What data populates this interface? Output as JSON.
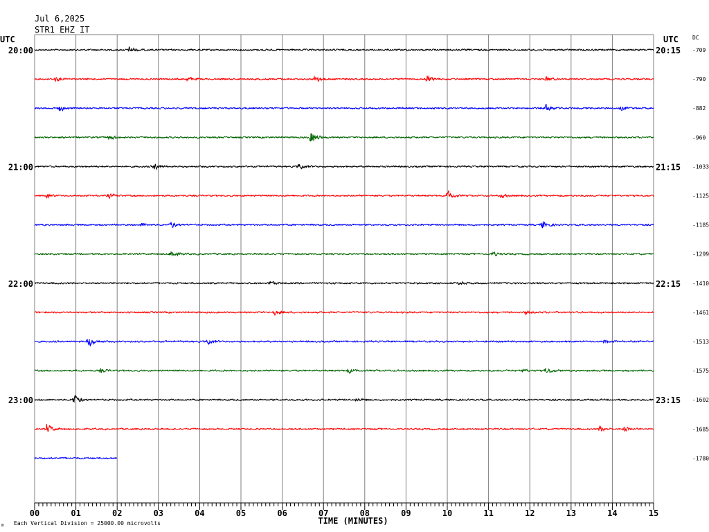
{
  "header": {
    "date": "Jul 6,2025",
    "station": "STR1 EHZ IT"
  },
  "left_axis_title": "UTC",
  "right_axis_title": "UTC",
  "dc_title": "DC",
  "footer": {
    "scale_note": "Each Vertical Division = 25000.00 microvolts",
    "corner_mark": "m"
  },
  "colors": {
    "black": "#000000",
    "red": "#ff0000",
    "blue": "#0000ff",
    "green": "#006400",
    "grid": "#7f7f7f"
  },
  "chart_data": {
    "type": "line",
    "title": "STR1 EHZ IT",
    "date": "Jul 6,2025",
    "xlabel": "TIME (MINUTES)",
    "xlim": [
      0,
      15
    ],
    "x_ticks": [
      "00",
      "01",
      "02",
      "03",
      "04",
      "05",
      "06",
      "07",
      "08",
      "09",
      "10",
      "11",
      "12",
      "13",
      "14",
      "15"
    ],
    "left_time_labels": [
      "20:00",
      "21:00",
      "22:00",
      "23:00"
    ],
    "right_time_labels": [
      "20:15",
      "21:15",
      "22:15",
      "23:15"
    ],
    "label_every_n_traces": 4,
    "color_cycle": [
      "black",
      "red",
      "blue",
      "green"
    ],
    "grid": true,
    "traces": [
      {
        "dc": "-709",
        "end_minute": 15,
        "events": [
          {
            "t": 2.3,
            "amp": 7
          }
        ]
      },
      {
        "dc": "-790",
        "end_minute": 15,
        "events": [
          {
            "t": 0.5,
            "amp": 5
          },
          {
            "t": 3.7,
            "amp": 4
          },
          {
            "t": 6.8,
            "amp": 8
          },
          {
            "t": 9.5,
            "amp": 9
          },
          {
            "t": 12.4,
            "amp": 5
          }
        ]
      },
      {
        "dc": "-882",
        "end_minute": 15,
        "events": [
          {
            "t": 0.6,
            "amp": 6
          },
          {
            "t": 12.4,
            "amp": 9
          },
          {
            "t": 14.2,
            "amp": 4
          }
        ]
      },
      {
        "dc": "-960",
        "end_minute": 15,
        "events": [
          {
            "t": 1.8,
            "amp": 6
          },
          {
            "t": 6.7,
            "amp": 16
          }
        ]
      },
      {
        "dc": "-1033",
        "end_minute": 15,
        "events": [
          {
            "t": 2.9,
            "amp": 7
          },
          {
            "t": 6.4,
            "amp": 6
          }
        ]
      },
      {
        "dc": "-1125",
        "end_minute": 15,
        "events": [
          {
            "t": 0.3,
            "amp": 4
          },
          {
            "t": 1.8,
            "amp": 5
          },
          {
            "t": 10.0,
            "amp": 10
          },
          {
            "t": 11.3,
            "amp": 4
          }
        ]
      },
      {
        "dc": "-1185",
        "end_minute": 15,
        "events": [
          {
            "t": 2.6,
            "amp": 4
          },
          {
            "t": 3.3,
            "amp": 7
          },
          {
            "t": 12.3,
            "amp": 9
          }
        ]
      },
      {
        "dc": "-1299",
        "end_minute": 15,
        "events": [
          {
            "t": 3.3,
            "amp": 9
          },
          {
            "t": 11.1,
            "amp": 4
          }
        ]
      },
      {
        "dc": "-1410",
        "end_minute": 15,
        "events": [
          {
            "t": 5.7,
            "amp": 4
          },
          {
            "t": 10.3,
            "amp": 3
          }
        ]
      },
      {
        "dc": "-1461",
        "end_minute": 15,
        "events": [
          {
            "t": 5.8,
            "amp": 5
          },
          {
            "t": 11.9,
            "amp": 3
          }
        ]
      },
      {
        "dc": "-1513",
        "end_minute": 15,
        "events": [
          {
            "t": 1.3,
            "amp": 12
          },
          {
            "t": 4.2,
            "amp": 5
          },
          {
            "t": 13.8,
            "amp": 3
          }
        ]
      },
      {
        "dc": "-1575",
        "end_minute": 15,
        "events": [
          {
            "t": 1.6,
            "amp": 4
          },
          {
            "t": 7.6,
            "amp": 5
          },
          {
            "t": 11.8,
            "amp": 3
          },
          {
            "t": 12.4,
            "amp": 7
          }
        ]
      },
      {
        "dc": "-1602",
        "end_minute": 15,
        "events": [
          {
            "t": 0.95,
            "amp": 11
          },
          {
            "t": 7.8,
            "amp": 3
          }
        ]
      },
      {
        "dc": "-1685",
        "end_minute": 15,
        "events": [
          {
            "t": 0.3,
            "amp": 10
          },
          {
            "t": 13.7,
            "amp": 7
          },
          {
            "t": 14.3,
            "amp": 5
          }
        ]
      },
      {
        "dc": "-1780",
        "end_minute": 2,
        "events": []
      }
    ]
  }
}
